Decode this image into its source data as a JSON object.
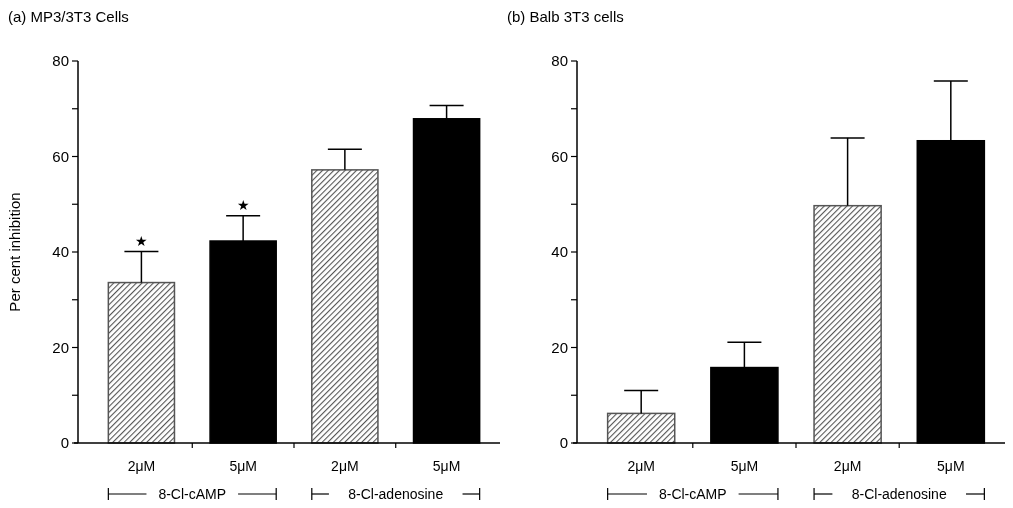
{
  "chart_data": [
    {
      "type": "bar",
      "title": "(a) MP3/3T3 Cells",
      "ylabel": "Per cent inhibition",
      "categories": [
        "2μM",
        "5μM",
        "2μM",
        "5μM"
      ],
      "values": [
        33.6,
        42.3,
        57.2,
        67.9
      ],
      "errors": [
        [
          33.6,
          40.1
        ],
        [
          42.3,
          47.6
        ],
        [
          57.2,
          61.5
        ],
        [
          67.9,
          70.7
        ]
      ],
      "colors": [
        "#555555",
        "#000000",
        "#555555",
        "#000000"
      ],
      "ylim": [
        0,
        80
      ],
      "yticks": [
        0,
        {
          "value": 10,
          "label": null
        },
        20,
        {
          "value": 30,
          "label": null
        },
        40,
        {
          "value": 50,
          "label": null
        },
        60,
        {
          "value": 70,
          "label": null
        },
        80
      ],
      "annotations": [
        "8-Cl-cAMP",
        "8-Cl-adenosine",
        {
          "text": "★",
          "x": "2μM",
          "y": 40.1
        },
        {
          "text": "★",
          "x": "5μM",
          "y": 47.6
        }
      ],
      "grid": false
    },
    {
      "type": "bar",
      "title": "(b) Balb 3T3 cells",
      "categories": [
        "2μM",
        "5μM",
        "2μM",
        "5μM"
      ],
      "values": [
        6.2,
        15.8,
        49.7,
        63.3
      ],
      "errors": [
        [
          6.2,
          11.0
        ],
        [
          15.8,
          21.1
        ],
        [
          49.7,
          63.9
        ],
        [
          63.3,
          75.8
        ]
      ],
      "colors": [
        "#555555",
        "#000000",
        "#555555",
        "#000000"
      ],
      "ylim": [
        0,
        80
      ],
      "yticks": [
        0,
        {
          "value": 10,
          "label": null
        },
        20,
        {
          "value": 30,
          "label": null
        },
        40,
        {
          "value": 50,
          "label": null
        },
        60,
        {
          "value": 70,
          "label": null
        },
        80
      ],
      "annotations": [
        "8-Cl-cAMP",
        "8-Cl-adenosine"
      ],
      "grid": false
    }
  ]
}
